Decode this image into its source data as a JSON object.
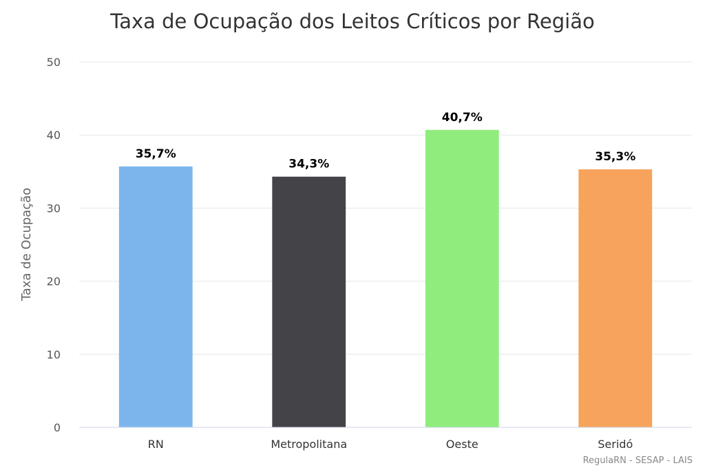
{
  "chart_data": {
    "type": "bar",
    "title": "Taxa de Ocupação dos Leitos Críticos por Região",
    "ylabel": "Taxa de Ocupação",
    "xlabel": "",
    "ylim": [
      0,
      50
    ],
    "yticks": [
      0,
      10,
      20,
      30,
      40,
      50
    ],
    "categories": [
      "RN",
      "Metropolitana",
      "Oeste",
      "Seridó"
    ],
    "values": [
      35.7,
      34.3,
      40.7,
      35.3
    ],
    "data_labels": [
      "35,7%",
      "34,3%",
      "40,7%",
      "35,3%"
    ],
    "colors": [
      "#7cb5ec",
      "#434348",
      "#90ed7d",
      "#f7a35c"
    ],
    "grid": true,
    "legend": "none",
    "credit": "RegulaRN - SESAP - LAIS"
  }
}
